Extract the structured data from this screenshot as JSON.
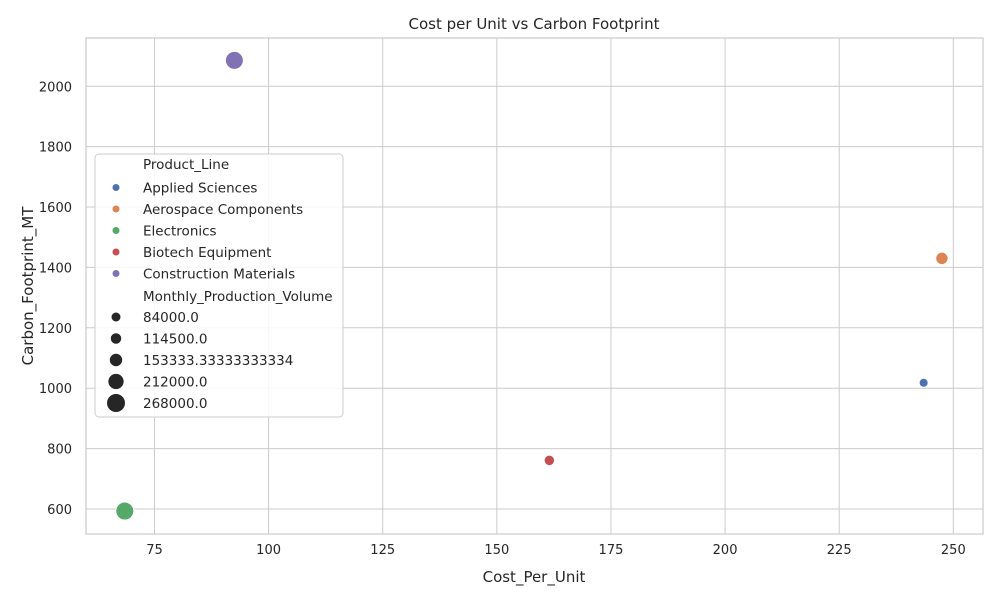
{
  "chart_data": {
    "type": "scatter",
    "title": "Cost per Unit vs Carbon Footprint",
    "xlabel": "Cost_Per_Unit",
    "ylabel": "Carbon_Footprint_MT",
    "xlim": [
      60,
      256.5
    ],
    "ylim": [
      517,
      2160
    ],
    "xticks": [
      75,
      100,
      125,
      150,
      175,
      200,
      225,
      250
    ],
    "yticks": [
      600,
      800,
      1000,
      1200,
      1400,
      1600,
      1800,
      2000
    ],
    "grid": true,
    "legend_position": "center-left",
    "hue_title": "Product_Line",
    "size_title": "Monthly_Production_Volume",
    "series": [
      {
        "name": "Applied Sciences",
        "color": "#4c72b0",
        "x": 243.5,
        "y": 1018,
        "size": 84000.0
      },
      {
        "name": "Aerospace Components",
        "color": "#dd8452",
        "x": 247.5,
        "y": 1430,
        "size": 153333.33333333334
      },
      {
        "name": "Electronics",
        "color": "#55a868",
        "x": 68.5,
        "y": 593,
        "size": 268000.0
      },
      {
        "name": "Biotech Equipment",
        "color": "#c44e52",
        "x": 161.5,
        "y": 761,
        "size": 114500.0
      },
      {
        "name": "Construction Materials",
        "color": "#8172b3",
        "x": 92.5,
        "y": 2086,
        "size": 268000.0
      }
    ],
    "size_legend": [
      {
        "label": "84000.0",
        "value": 84000.0
      },
      {
        "label": "114500.0",
        "value": 114500.0
      },
      {
        "label": "153333.33333333334",
        "value": 153333.33333333334
      },
      {
        "label": "212000.0",
        "value": 212000.0
      },
      {
        "label": "268000.0",
        "value": 268000.0
      }
    ]
  }
}
